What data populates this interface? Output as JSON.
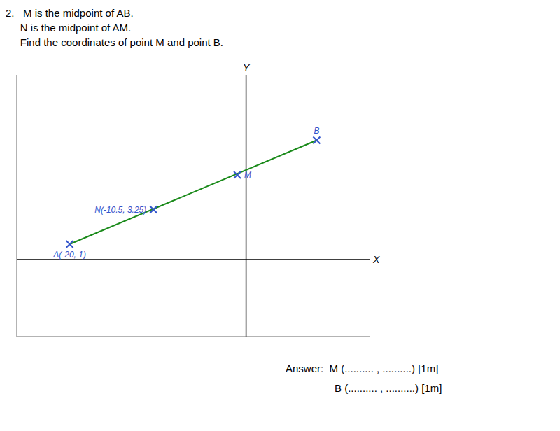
{
  "chart_data": {
    "type": "scatter",
    "title": "2.   M is the midpoint of AB.\n     N is the midpoint of AM.\n     Find the coordinates of point M and point B.",
    "xlabel": "X",
    "ylabel": "Y",
    "xlim": [
      -26,
      14
    ],
    "ylim": [
      -5,
      12
    ],
    "tick_labels": false,
    "grid": false,
    "series": [
      {
        "type": "line",
        "color": "#1a8a1a",
        "x": [
          -20,
          8
        ],
        "values": [
          1,
          7.75
        ]
      },
      {
        "type": "scatter",
        "color": "#3355cc",
        "marker": "x",
        "x": [
          -20,
          -10.5,
          -1,
          8
        ],
        "values": [
          1,
          3.25,
          5.5,
          7.75
        ]
      }
    ],
    "annotations": [
      {
        "text": "A(-20, 1)",
        "x": -20,
        "y": 1,
        "color": "#3355cc"
      },
      {
        "text": "N(-10.5, 3.25)",
        "x": -10.5,
        "y": 3.25,
        "color": "#3355cc"
      },
      {
        "text": "M",
        "x": -1,
        "y": 5.5,
        "color": "#3355cc"
      },
      {
        "text": "B",
        "x": 8,
        "y": 7.75,
        "color": "#3355cc"
      },
      {
        "text": "Answer:  M (.......... , ..........) [1m]",
        "color": "#000000"
      },
      {
        "text": "B (.......... , ..........) [1m]",
        "color": "#000000"
      }
    ]
  }
}
